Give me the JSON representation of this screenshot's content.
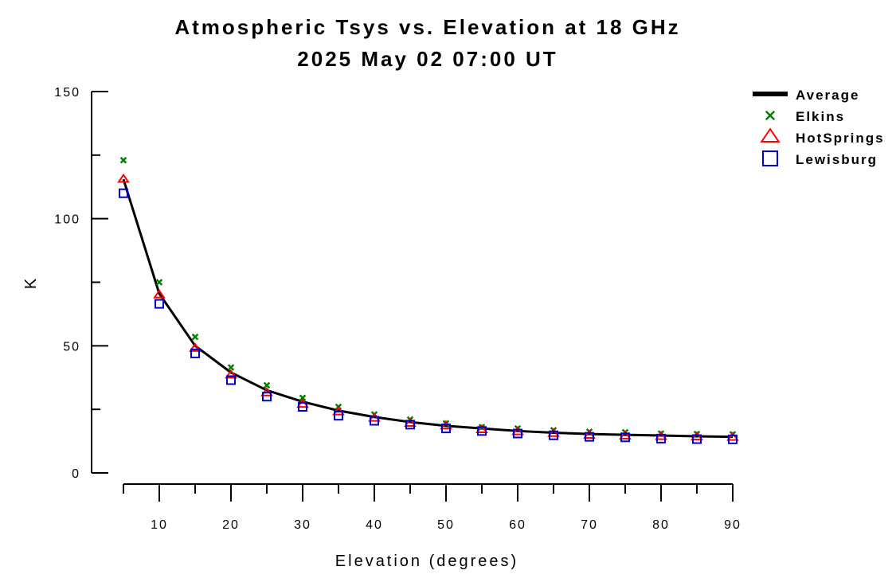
{
  "chart_data": {
    "type": "line",
    "title": "Atmospheric Tsys vs. Elevation at 18 GHz",
    "subtitle": "2025 May 02 07:00 UT",
    "xlabel": "Elevation (degrees)",
    "ylabel": "K",
    "xlim": [
      5,
      90
    ],
    "ylim": [
      0,
      150
    ],
    "x_ticks": [
      10,
      20,
      30,
      40,
      50,
      60,
      70,
      80,
      90
    ],
    "y_ticks": [
      0,
      50,
      100,
      150
    ],
    "x": [
      5,
      10,
      15,
      20,
      25,
      30,
      35,
      40,
      45,
      50,
      55,
      60,
      65,
      70,
      75,
      80,
      85,
      90
    ],
    "legend_position": "top-right",
    "series": [
      {
        "name": "Average",
        "style": "line",
        "color": "#000000",
        "values": [
          115.5,
          70.5,
          50,
          39.5,
          32.5,
          28,
          24.5,
          22,
          20,
          18.5,
          17.5,
          16.5,
          15.8,
          15.3,
          15,
          14.7,
          14.4,
          14.2
        ]
      },
      {
        "name": "Elkins",
        "style": "x",
        "color": "#008000",
        "values": [
          123,
          75,
          53.5,
          41.5,
          34.5,
          29.5,
          26,
          23,
          21,
          19.5,
          18,
          17.5,
          16.8,
          16.2,
          16,
          15.5,
          15.3,
          15.2
        ]
      },
      {
        "name": "HotSprings",
        "style": "triangle",
        "color": "#ff0000",
        "values": [
          115.5,
          70,
          49,
          38.5,
          31.5,
          27,
          24,
          21.5,
          19.5,
          18.5,
          17,
          16.2,
          15.5,
          14.8,
          14.5,
          14.3,
          14.2,
          14
        ]
      },
      {
        "name": "Lewisburg",
        "style": "square",
        "color": "#0000cc",
        "values": [
          110,
          66.5,
          47,
          36.5,
          30,
          26,
          22.5,
          20.5,
          19,
          17.5,
          16.5,
          15.5,
          14.8,
          14.2,
          14,
          13.5,
          13.3,
          13.2
        ]
      }
    ]
  }
}
